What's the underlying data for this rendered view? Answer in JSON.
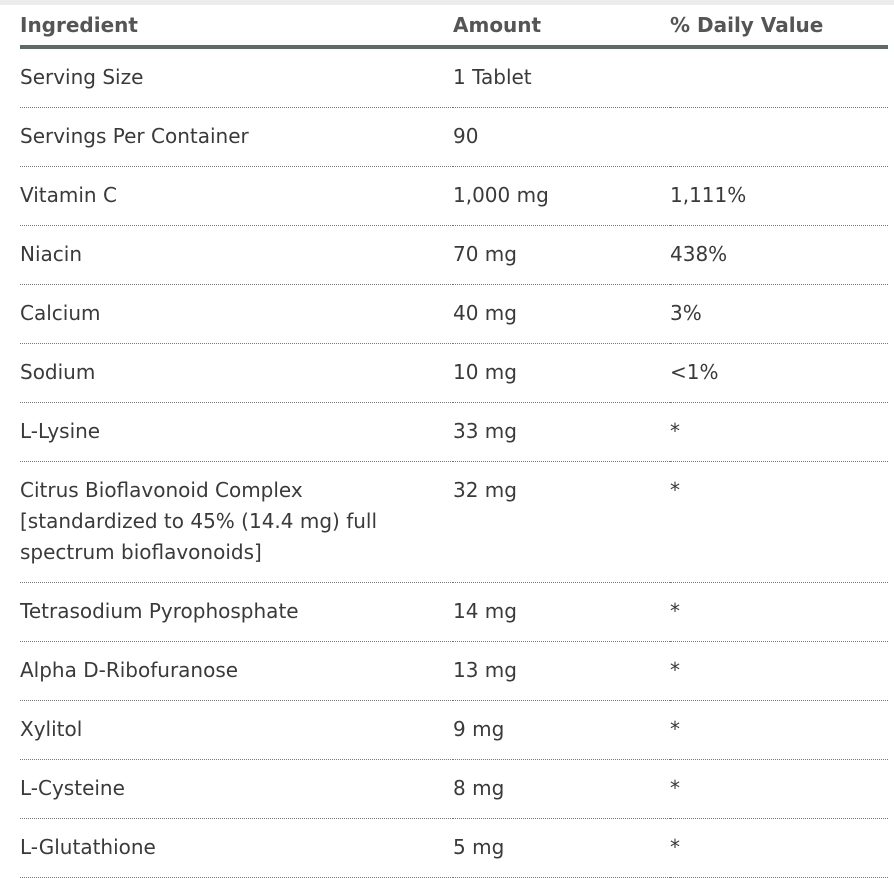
{
  "table": {
    "headers": [
      "Ingredient",
      "Amount",
      "% Daily Value"
    ],
    "rows": [
      [
        "Serving Size",
        "1 Tablet"
      ],
      [
        "Servings Per Container",
        "90"
      ],
      [
        "Vitamin C",
        "1,000 mg",
        "1,111%"
      ],
      [
        "Niacin",
        "70 mg",
        "438%"
      ],
      [
        "Calcium",
        "40 mg",
        "3%"
      ],
      [
        "Sodium",
        "10 mg",
        "<1%"
      ],
      [
        "L-Lysine",
        "33 mg",
        "*"
      ],
      [
        "Citrus Bioflavonoid Complex\n [standardized to 45% (14.4 mg) full spectrum bioflavonoids]",
        "32 mg",
        "*"
      ],
      [
        "Tetrasodium Pyrophosphate",
        "14 mg",
        "*"
      ],
      [
        "Alpha D-Ribofuranose",
        "13 mg",
        "*"
      ],
      [
        "Xylitol",
        "9 mg",
        "*"
      ],
      [
        "L-Cysteine",
        "8 mg",
        "*"
      ],
      [
        "L-Glutathione",
        "5 mg",
        "*"
      ]
    ]
  }
}
